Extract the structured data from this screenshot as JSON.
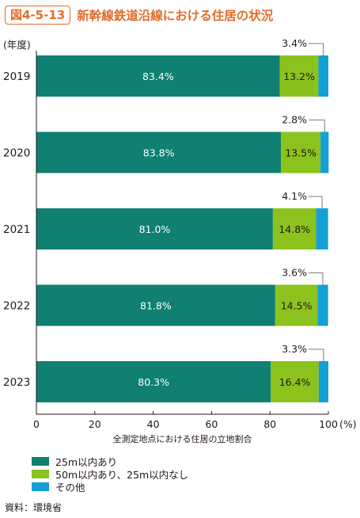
{
  "header": {
    "figure_number": "図4-5-13",
    "title": "新幹線鉄道沿線における住居の状況"
  },
  "source": "資料：環境省",
  "colors": {
    "teal": "#0f8071",
    "green": "#8cc21e",
    "blue": "#14a0d5",
    "accent": "#e36c2a"
  },
  "chart_data": {
    "type": "bar",
    "orientation": "horizontal",
    "stacked": true,
    "y_axis_title": "(年度)",
    "categories": [
      "2019",
      "2020",
      "2021",
      "2022",
      "2023"
    ],
    "series": [
      {
        "name": "25m以内あり",
        "color_key": "teal",
        "values": [
          83.4,
          83.8,
          81.0,
          81.8,
          80.3
        ],
        "labels": [
          "83.4%",
          "83.8%",
          "81.0%",
          "81.8%",
          "80.3%"
        ]
      },
      {
        "name": "50m以内あり、25m以内なし",
        "color_key": "green",
        "values": [
          13.2,
          13.5,
          14.8,
          14.5,
          16.4
        ],
        "labels": [
          "13.2%",
          "13.5%",
          "14.8%",
          "14.5%",
          "16.4%"
        ]
      },
      {
        "name": "その他",
        "color_key": "blue",
        "values": [
          3.4,
          2.8,
          4.1,
          3.6,
          3.3
        ],
        "labels": [
          "3.4%",
          "2.8%",
          "4.1%",
          "3.6%",
          "3.3%"
        ]
      }
    ],
    "x_ticks": [
      "0",
      "20",
      "40",
      "60",
      "80",
      "100"
    ],
    "x_unit": "(%)",
    "xlabel": "全測定地点における住居の立地割合",
    "xlim": [
      0,
      100
    ],
    "legend_position": "bottom-left"
  }
}
